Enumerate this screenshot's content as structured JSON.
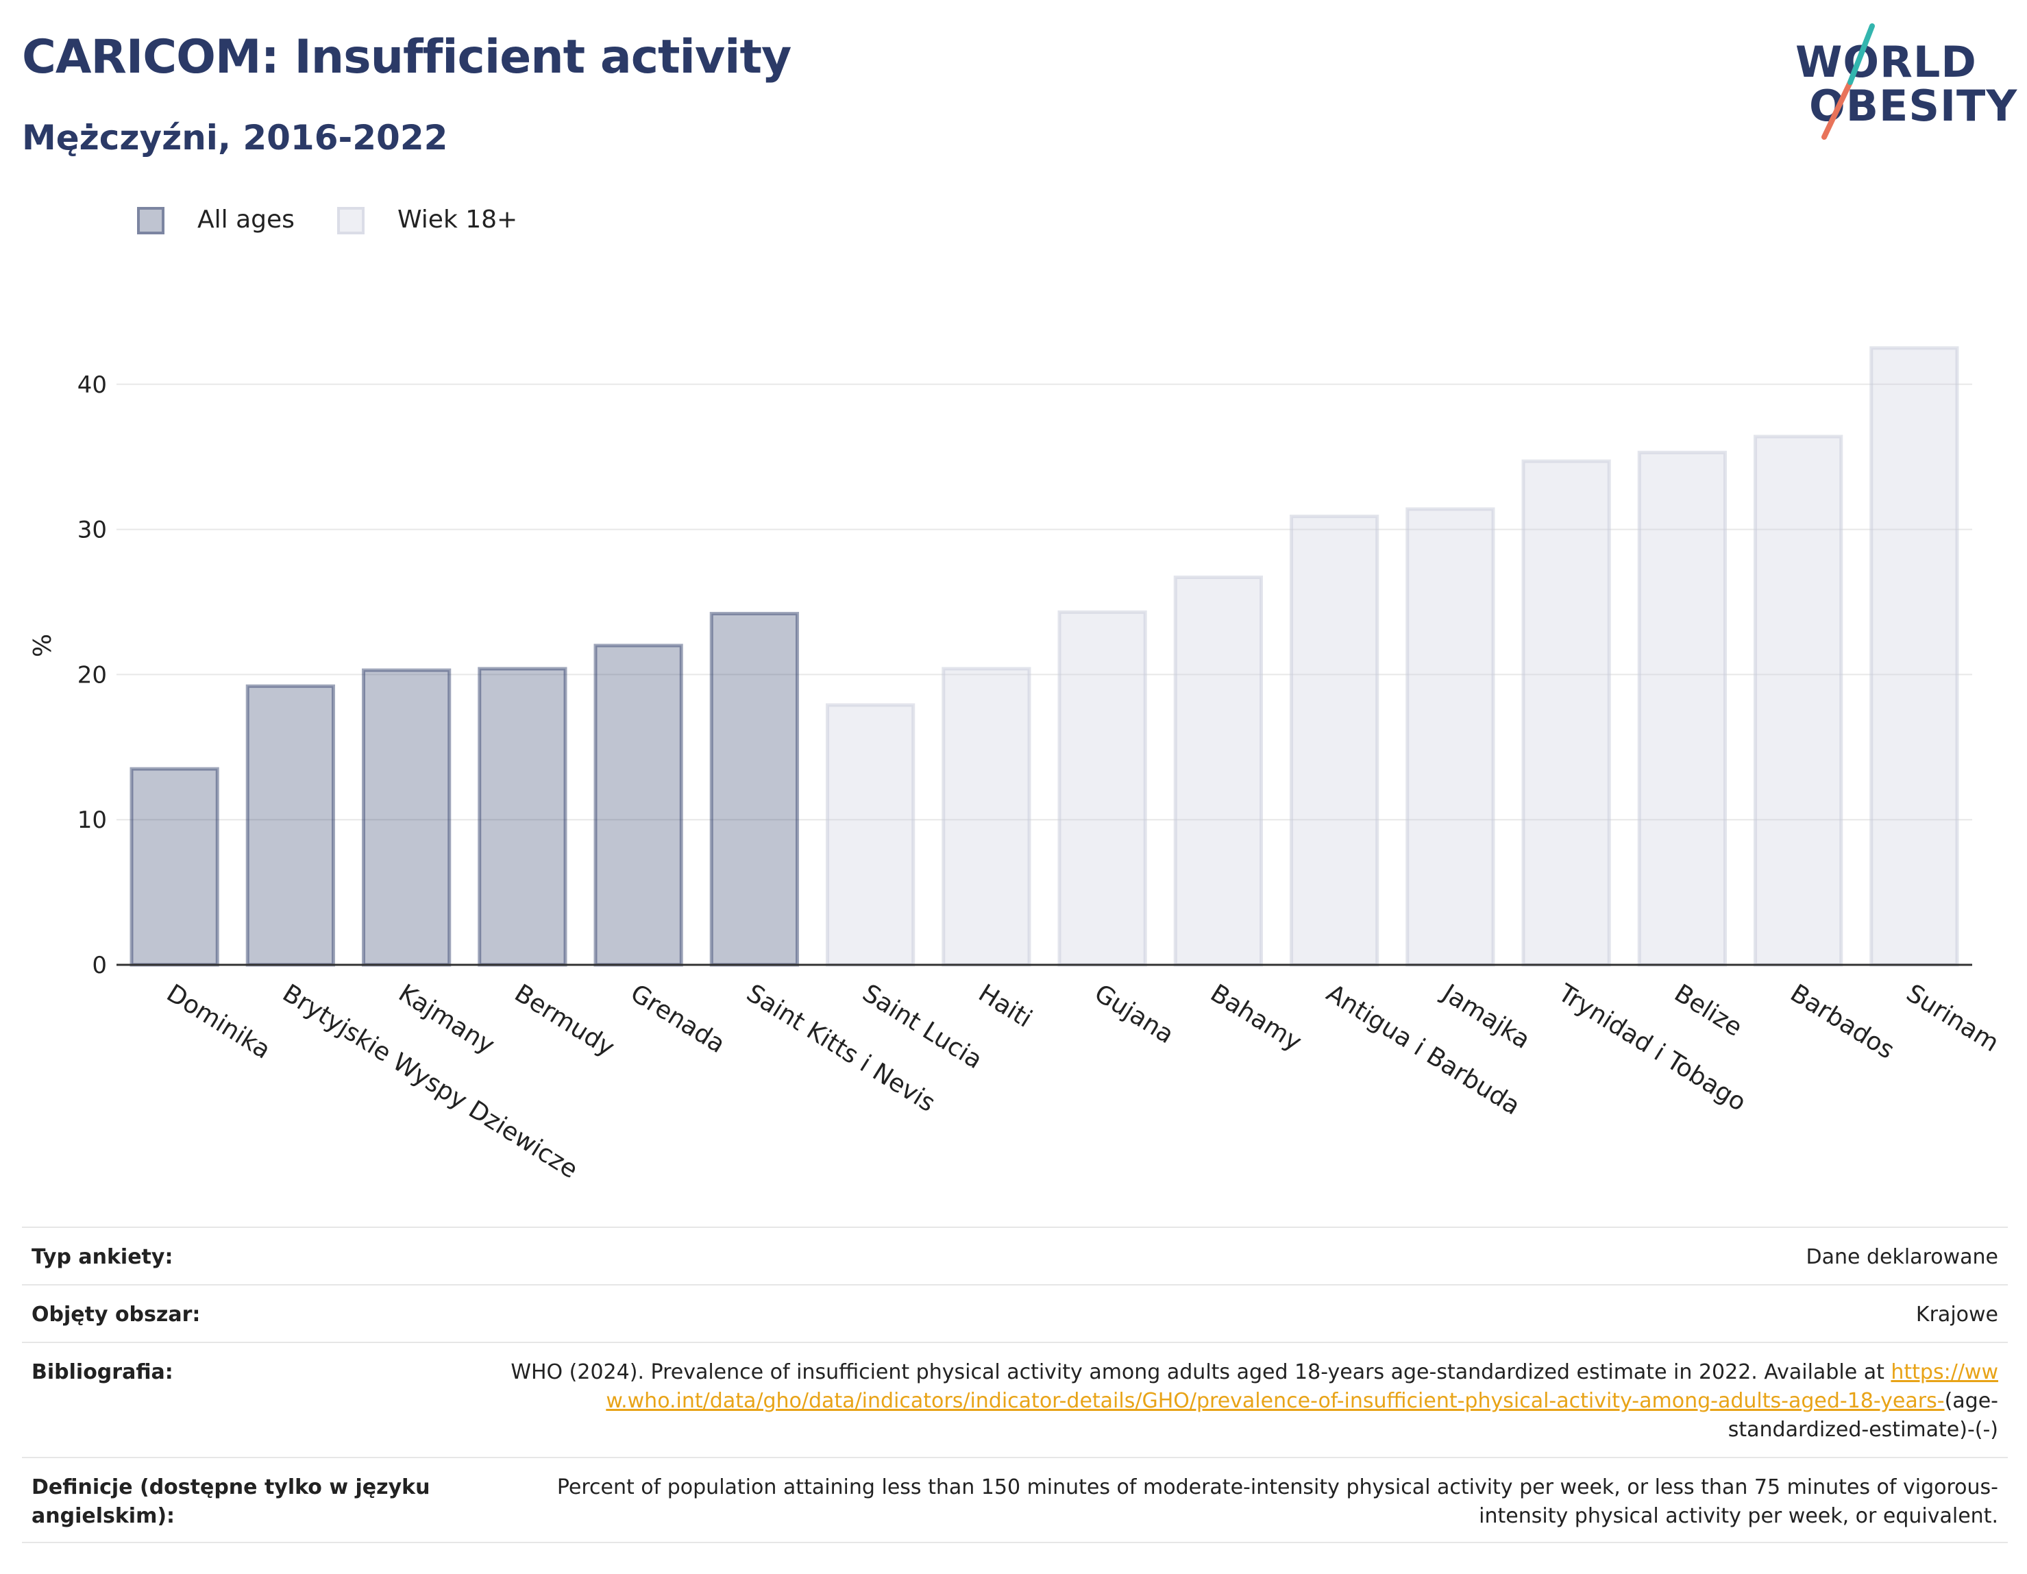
{
  "header": {
    "title": "CARICOM: Insufficient activity",
    "subtitle": "Mężczyźni, 2016-2022"
  },
  "logo": {
    "line1": "WORLD",
    "line2": "OBESITY"
  },
  "legend": {
    "items": [
      {
        "label": "All ages",
        "color": "#2b3a67"
      },
      {
        "label": "Wiek 18+",
        "color": "#c8cbd9"
      }
    ]
  },
  "chart_data": {
    "type": "bar",
    "ylabel": "%",
    "ylim": [
      0,
      44
    ],
    "yticks": [
      0,
      10,
      20,
      30,
      40
    ],
    "grid": true,
    "legend_position": "top-left",
    "series": [
      {
        "name": "All ages",
        "color": "#2b3a67",
        "categories": [
          "Dominika",
          "Brytyjskie Wyspy Dziewicze",
          "Kajmany",
          "Bermudy",
          "Grenada",
          "Saint Kitts i Nevis"
        ],
        "values": [
          13.5,
          19.2,
          20.3,
          20.4,
          22.0,
          24.2
        ]
      },
      {
        "name": "Wiek 18+",
        "color": "#c8cbd9",
        "categories": [
          "Saint Lucia",
          "Haiti",
          "Gujana",
          "Bahamy",
          "Antigua i Barbuda",
          "Jamajka",
          "Trynidad i Tobago",
          "Belize",
          "Barbados",
          "Surinam"
        ],
        "values": [
          17.9,
          20.4,
          24.3,
          26.7,
          30.9,
          31.4,
          34.7,
          35.3,
          36.4,
          42.5
        ]
      }
    ]
  },
  "meta": {
    "rows": [
      {
        "label": "Typ ankiety:",
        "value": "Dane deklarowane"
      },
      {
        "label": "Objęty obszar:",
        "value": "Krajowe"
      },
      {
        "label": "Bibliografia:",
        "value_prefix": "WHO (2024). Prevalence of insufficient physical activity among adults aged 18-years age-standardized estimate in 2022. Available at",
        "link": "https://www.who.int/data/gho/data/indicators/indicator-details/GHO/prevalence-of-insufficient-physical-activity-among-adults-aged-18-years-",
        "value_suffix": "(age-standardized-estimate)-(-)"
      },
      {
        "label": "Definicje (dostępne tylko w języku angielskim):",
        "value": "Percent of population attaining less than 150 minutes of moderate-intensity physical activity per week, or less than 75 minutes of vigorous-intensity physical activity per week, or equivalent."
      }
    ]
  }
}
